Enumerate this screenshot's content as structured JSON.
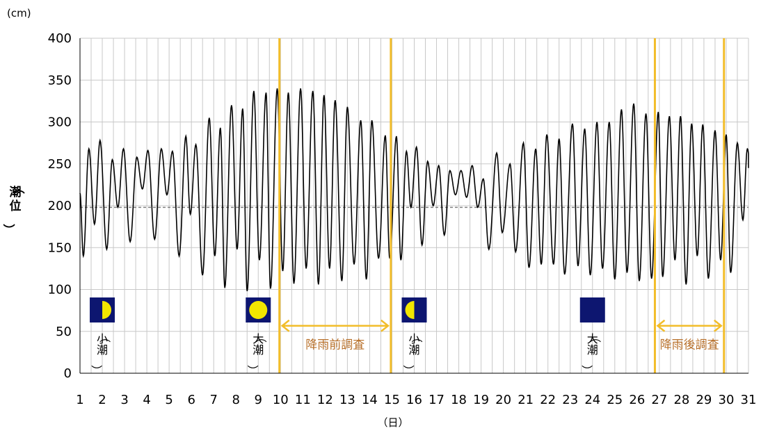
{
  "chart_data": {
    "type": "line",
    "y_unit": "(cm)",
    "ylabel": "（潮位）",
    "x_unit": "（日）",
    "xlim": [
      1,
      31
    ],
    "ylim": [
      0,
      400
    ],
    "y_ticks": [
      0,
      50,
      100,
      150,
      200,
      250,
      300,
      350,
      400
    ],
    "x_ticks": [
      1,
      2,
      3,
      4,
      5,
      6,
      7,
      8,
      9,
      10,
      11,
      12,
      13,
      14,
      15,
      16,
      17,
      18,
      19,
      20,
      21,
      22,
      23,
      24,
      25,
      26,
      27,
      28,
      29,
      30,
      31
    ],
    "grid": true,
    "reference_line": 198,
    "tide_extrema": [
      [
        1.0,
        215
      ],
      [
        1.15,
        140
      ],
      [
        1.4,
        268
      ],
      [
        1.65,
        178
      ],
      [
        1.9,
        278
      ],
      [
        2.2,
        148
      ],
      [
        2.45,
        255
      ],
      [
        2.7,
        198
      ],
      [
        2.95,
        268
      ],
      [
        3.25,
        157
      ],
      [
        3.55,
        258
      ],
      [
        3.8,
        220
      ],
      [
        4.05,
        266
      ],
      [
        4.35,
        160
      ],
      [
        4.65,
        268
      ],
      [
        4.9,
        213
      ],
      [
        5.15,
        265
      ],
      [
        5.45,
        140
      ],
      [
        5.75,
        283
      ],
      [
        5.95,
        190
      ],
      [
        6.2,
        273
      ],
      [
        6.5,
        117
      ],
      [
        6.8,
        305
      ],
      [
        7.05,
        140
      ],
      [
        7.3,
        293
      ],
      [
        7.5,
        102
      ],
      [
        7.8,
        320
      ],
      [
        8.05,
        148
      ],
      [
        8.3,
        316
      ],
      [
        8.5,
        98
      ],
      [
        8.8,
        337
      ],
      [
        9.05,
        135
      ],
      [
        9.35,
        335
      ],
      [
        9.55,
        101
      ],
      [
        9.85,
        340
      ],
      [
        10.1,
        122
      ],
      [
        10.35,
        335
      ],
      [
        10.6,
        107
      ],
      [
        10.9,
        340
      ],
      [
        11.15,
        125
      ],
      [
        11.45,
        337
      ],
      [
        11.7,
        106
      ],
      [
        11.95,
        332
      ],
      [
        12.2,
        125
      ],
      [
        12.45,
        326
      ],
      [
        12.75,
        110
      ],
      [
        13.0,
        318
      ],
      [
        13.3,
        130
      ],
      [
        13.6,
        302
      ],
      [
        13.85,
        112
      ],
      [
        14.1,
        302
      ],
      [
        14.4,
        137
      ],
      [
        14.7,
        284
      ],
      [
        14.9,
        137
      ],
      [
        15.2,
        283
      ],
      [
        15.4,
        135
      ],
      [
        15.65,
        265
      ],
      [
        15.85,
        198
      ],
      [
        16.1,
        270
      ],
      [
        16.35,
        153
      ],
      [
        16.6,
        253
      ],
      [
        16.85,
        200
      ],
      [
        17.1,
        248
      ],
      [
        17.35,
        165
      ],
      [
        17.6,
        242
      ],
      [
        17.85,
        213
      ],
      [
        18.1,
        242
      ],
      [
        18.35,
        210
      ],
      [
        18.6,
        248
      ],
      [
        18.85,
        198
      ],
      [
        19.1,
        232
      ],
      [
        19.35,
        148
      ],
      [
        19.7,
        263
      ],
      [
        19.95,
        168
      ],
      [
        20.3,
        250
      ],
      [
        20.55,
        145
      ],
      [
        20.9,
        275
      ],
      [
        21.15,
        126
      ],
      [
        21.45,
        268
      ],
      [
        21.7,
        130
      ],
      [
        21.95,
        285
      ],
      [
        22.25,
        130
      ],
      [
        22.5,
        280
      ],
      [
        22.75,
        118
      ],
      [
        23.1,
        298
      ],
      [
        23.35,
        128
      ],
      [
        23.65,
        292
      ],
      [
        23.9,
        117
      ],
      [
        24.2,
        300
      ],
      [
        24.45,
        125
      ],
      [
        24.75,
        300
      ],
      [
        25.0,
        112
      ],
      [
        25.3,
        315
      ],
      [
        25.55,
        120
      ],
      [
        25.85,
        322
      ],
      [
        26.1,
        110
      ],
      [
        26.4,
        310
      ],
      [
        26.65,
        113
      ],
      [
        26.95,
        312
      ],
      [
        27.15,
        115
      ],
      [
        27.45,
        307
      ],
      [
        27.7,
        135
      ],
      [
        27.95,
        307
      ],
      [
        28.2,
        106
      ],
      [
        28.45,
        298
      ],
      [
        28.7,
        140
      ],
      [
        28.95,
        297
      ],
      [
        29.2,
        113
      ],
      [
        29.5,
        290
      ],
      [
        29.75,
        135
      ],
      [
        30.0,
        285
      ],
      [
        30.2,
        120
      ],
      [
        30.5,
        275
      ],
      [
        30.75,
        183
      ],
      [
        30.95,
        268
      ],
      [
        31.1,
        245
      ]
    ],
    "vertical_lines": [
      9.95,
      14.95,
      26.8,
      29.9
    ],
    "annotations": [
      {
        "text": "降雨前調査",
        "from": 9.95,
        "to": 14.95,
        "y": 55
      },
      {
        "text": "降雨後調査",
        "from": 26.8,
        "to": 29.9,
        "y": 55
      }
    ],
    "moon_phases": [
      {
        "day": 2,
        "phase": "first-quarter-icon",
        "label": "（小潮）"
      },
      {
        "day": 9,
        "phase": "full-moon-icon",
        "label": "（大潮）"
      },
      {
        "day": 16,
        "phase": "last-quarter-icon",
        "label": "（小潮）"
      },
      {
        "day": 24,
        "phase": "new-moon-icon",
        "label": "（大潮）"
      }
    ],
    "colors": {
      "tide_line": "#000000",
      "survey_line": "#f2bd2a",
      "annotation_text": "#b8702a",
      "moon_bg": "#0d1670",
      "moon_light": "#f2e600",
      "grid": "#c8c8c8",
      "reference": "#808080"
    }
  }
}
